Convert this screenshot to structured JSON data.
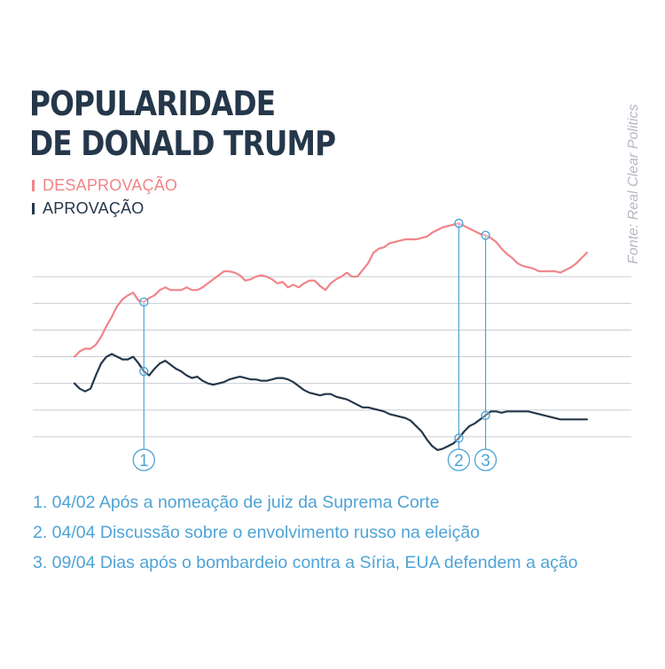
{
  "title_lines": [
    "POPULARIDADE",
    "DE DONALD TRUMP"
  ],
  "source": "Fonte: Real Clear Politics",
  "legend": [
    {
      "label": "DESAPROVAÇÃO",
      "color": "#f08488"
    },
    {
      "label": "APROVAÇÃO",
      "color": "#25374a"
    }
  ],
  "colors": {
    "title": "#25374a",
    "grid": "#c9cdd5",
    "accent": "#4fa3d6",
    "source": "#b3b8c3"
  },
  "chart_data": {
    "type": "line",
    "title": "POPULARIDADE DE DONALD TRUMP",
    "xlabel": "",
    "ylabel": "",
    "ylim": [
      38,
      56
    ],
    "gridlines": [
      40,
      42,
      44,
      46,
      48,
      50,
      52
    ],
    "grid": true,
    "x": [
      "2017-01-22",
      "2017-01-23",
      "2017-01-24",
      "2017-01-25",
      "2017-01-26",
      "2017-01-27",
      "2017-01-28",
      "2017-01-29",
      "2017-01-30",
      "2017-01-31",
      "2017-02-01",
      "2017-02-02",
      "2017-02-03",
      "2017-02-04",
      "2017-02-05",
      "2017-02-06",
      "2017-02-07",
      "2017-02-08",
      "2017-02-09",
      "2017-02-10",
      "2017-02-11",
      "2017-02-12",
      "2017-02-13",
      "2017-02-14",
      "2017-02-15",
      "2017-02-16",
      "2017-02-17",
      "2017-02-18",
      "2017-02-19",
      "2017-02-20",
      "2017-02-21",
      "2017-02-22",
      "2017-02-23",
      "2017-02-24",
      "2017-02-25",
      "2017-02-26",
      "2017-02-27",
      "2017-02-28",
      "2017-03-01",
      "2017-03-02",
      "2017-03-03",
      "2017-03-04",
      "2017-03-05",
      "2017-03-06",
      "2017-03-07",
      "2017-03-08",
      "2017-03-09",
      "2017-03-10",
      "2017-03-11",
      "2017-03-12",
      "2017-03-13",
      "2017-03-14",
      "2017-03-15",
      "2017-03-16",
      "2017-03-17",
      "2017-03-18",
      "2017-03-19",
      "2017-03-20",
      "2017-03-21",
      "2017-03-22",
      "2017-03-23",
      "2017-03-24",
      "2017-03-25",
      "2017-03-26",
      "2017-03-27",
      "2017-03-28",
      "2017-03-29",
      "2017-03-30",
      "2017-03-31",
      "2017-04-01",
      "2017-04-02",
      "2017-04-03",
      "2017-04-04",
      "2017-04-05",
      "2017-04-06",
      "2017-04-07",
      "2017-04-08",
      "2017-04-09",
      "2017-04-10",
      "2017-04-11",
      "2017-04-12",
      "2017-04-13",
      "2017-04-14",
      "2017-04-15",
      "2017-04-16",
      "2017-04-17",
      "2017-04-18",
      "2017-04-19",
      "2017-04-20",
      "2017-04-21",
      "2017-04-22",
      "2017-04-23",
      "2017-04-24",
      "2017-04-25",
      "2017-04-26",
      "2017-04-27",
      "2017-04-28"
    ],
    "series": [
      {
        "name": "DESAPROVAÇÃO",
        "color": "#f08488",
        "values": [
          46.0,
          46.4,
          46.6,
          46.6,
          46.9,
          47.5,
          48.3,
          49.0,
          49.8,
          50.3,
          50.6,
          50.8,
          50.2,
          50.1,
          50.4,
          50.6,
          51.0,
          51.2,
          51.0,
          51.0,
          51.0,
          51.2,
          51.0,
          51.0,
          51.2,
          51.5,
          51.8,
          52.1,
          52.4,
          52.4,
          52.3,
          52.1,
          51.7,
          51.8,
          52.0,
          52.1,
          52.0,
          51.8,
          51.5,
          51.6,
          51.2,
          51.4,
          51.2,
          51.5,
          51.7,
          51.7,
          51.3,
          51.0,
          51.5,
          51.8,
          52.0,
          52.3,
          52.0,
          52.0,
          52.5,
          53.0,
          53.8,
          54.1,
          54.2,
          54.5,
          54.6,
          54.7,
          54.8,
          54.8,
          54.8,
          54.9,
          55.0,
          55.3,
          55.5,
          55.7,
          55.8,
          55.9,
          56.0,
          55.8,
          55.6,
          55.4,
          55.2,
          55.1,
          54.9,
          54.6,
          54.1,
          53.7,
          53.4,
          53.0,
          52.8,
          52.7,
          52.6,
          52.4,
          52.4,
          52.4,
          52.4,
          52.3,
          52.5,
          52.7,
          53.0,
          53.4,
          53.8
        ]
      },
      {
        "name": "APROVAÇÃO",
        "color": "#25374a",
        "values": [
          44.0,
          43.6,
          43.4,
          43.6,
          44.6,
          45.5,
          46.0,
          46.2,
          46.0,
          45.8,
          45.8,
          46.0,
          45.5,
          44.9,
          44.6,
          45.1,
          45.5,
          45.7,
          45.4,
          45.1,
          44.9,
          44.6,
          44.4,
          44.5,
          44.2,
          44.0,
          43.9,
          44.0,
          44.1,
          44.3,
          44.4,
          44.5,
          44.4,
          44.3,
          44.3,
          44.2,
          44.2,
          44.3,
          44.4,
          44.4,
          44.3,
          44.1,
          43.8,
          43.5,
          43.3,
          43.2,
          43.1,
          43.2,
          43.2,
          43.0,
          42.9,
          42.8,
          42.6,
          42.4,
          42.2,
          42.2,
          42.1,
          42.0,
          41.9,
          41.7,
          41.6,
          41.5,
          41.4,
          41.2,
          40.8,
          40.4,
          39.8,
          39.3,
          39.0,
          39.1,
          39.3,
          39.5,
          39.9,
          40.4,
          40.8,
          41.0,
          41.3,
          41.6,
          41.9,
          41.9,
          41.8,
          41.9,
          41.9,
          41.9,
          41.9,
          41.9,
          41.8,
          41.7,
          41.6,
          41.5,
          41.4,
          41.3,
          41.3,
          41.3,
          41.3,
          41.3,
          41.3
        ]
      }
    ],
    "points": [
      {
        "date": "2017-02-04",
        "y": 50.1
      },
      {
        "date": "2017-02-04",
        "y": 44.9
      },
      {
        "date": "2017-04-04",
        "y": 56.0
      },
      {
        "date": "2017-04-04",
        "y": 39.9
      },
      {
        "date": "2017-04-09",
        "y": 55.1
      },
      {
        "date": "2017-04-09",
        "y": 41.6
      }
    ],
    "markers": [
      {
        "label": "1",
        "date": "2017-02-04"
      },
      {
        "label": "2",
        "date": "2017-04-04"
      },
      {
        "label": "3",
        "date": "2017-04-09"
      }
    ]
  },
  "annotations": [
    "1. 04/02 Após a nomeação de juiz da Suprema Corte",
    "2. 04/04 Discussão sobre o envolvimento russo na eleição",
    "3. 09/04 Dias após o bombardeio contra a Síria, EUA defendem a ação"
  ]
}
